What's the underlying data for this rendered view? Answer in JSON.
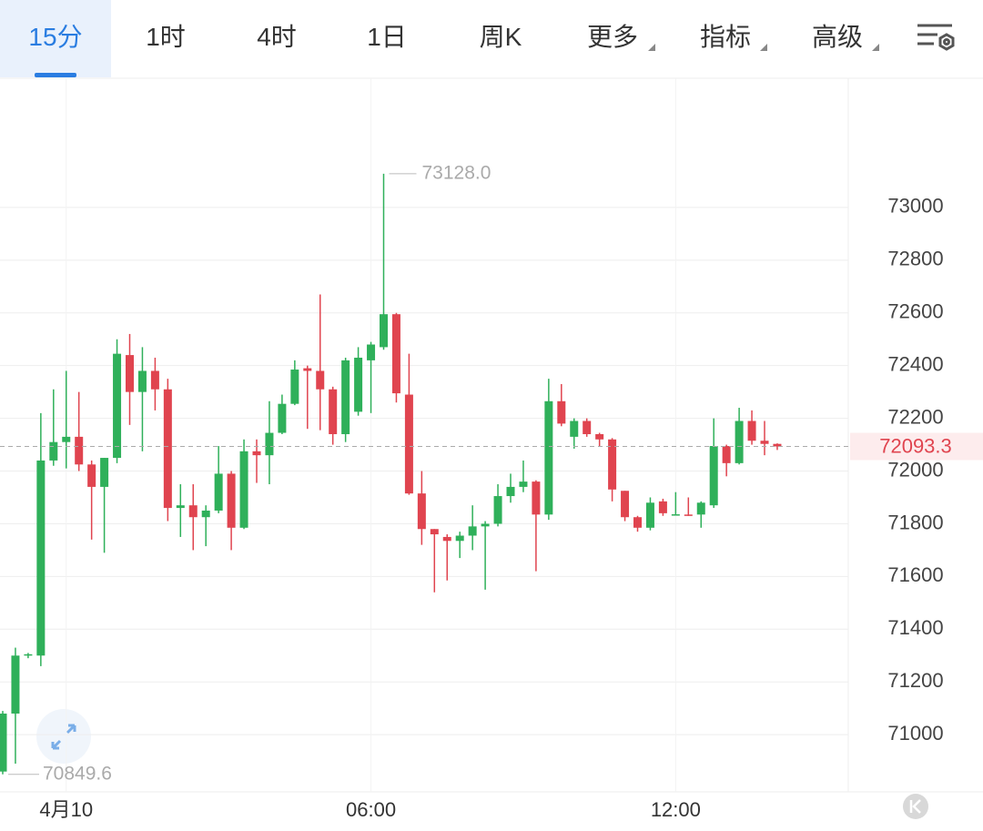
{
  "tabs": [
    "15分",
    "1时",
    "4时",
    "1日",
    "周K",
    "更多",
    "指标",
    "高级"
  ],
  "chart_data": {
    "type": "candlestick",
    "categories": [
      null,
      null,
      null,
      null,
      null,
      "4月10",
      null,
      null,
      null,
      null,
      null,
      null,
      null,
      null,
      null,
      null,
      null,
      null,
      null,
      null,
      null,
      null,
      null,
      null,
      null,
      null,
      null,
      null,
      null,
      "06:00",
      null,
      null,
      null,
      null,
      null,
      null,
      null,
      null,
      null,
      null,
      null,
      null,
      null,
      null,
      null,
      null,
      null,
      null,
      null,
      null,
      null,
      null,
      null,
      "12:00",
      null,
      null,
      null,
      null,
      null,
      null,
      null,
      null
    ],
    "open": [
      70860,
      71080,
      71300,
      71300,
      72040,
      72110,
      72130,
      72025,
      71940,
      72050,
      72440,
      72300,
      72380,
      72310,
      71860,
      71870,
      71825,
      71850,
      71990,
      71785,
      72075,
      72060,
      72145,
      72255,
      72390,
      72380,
      72310,
      72140,
      72225,
      72420,
      72470,
      72595,
      72290,
      71915,
      71780,
      71750,
      71735,
      71755,
      71790,
      71800,
      71905,
      71940,
      71960,
      71835,
      72265,
      72130,
      72190,
      72140,
      72120,
      71925,
      71825,
      71785,
      71885,
      71835,
      71835,
      71835,
      71870,
      72095,
      72030,
      72190,
      72115,
      72103
    ],
    "high": [
      71090,
      71330,
      71310,
      72220,
      72310,
      72380,
      72300,
      72040,
      72050,
      72500,
      72520,
      72470,
      72430,
      72350,
      71950,
      71950,
      71870,
      72095,
      72000,
      72120,
      72120,
      72265,
      72290,
      72420,
      72400,
      72670,
      72320,
      72430,
      72470,
      72490,
      73128,
      72600,
      72445,
      72000,
      71780,
      71760,
      71770,
      71870,
      71810,
      71950,
      71990,
      72040,
      71965,
      72350,
      72330,
      72200,
      72200,
      72145,
      72125,
      71925,
      71830,
      71900,
      71895,
      71920,
      71900,
      71885,
      72200,
      72100,
      72240,
      72230,
      72190,
      72105
    ],
    "low": [
      70849.6,
      70890,
      71290,
      71260,
      72020,
      72010,
      72000,
      71740,
      71690,
      72030,
      72175,
      72075,
      72230,
      71810,
      71750,
      71700,
      71715,
      71840,
      71700,
      71780,
      71955,
      71950,
      72140,
      72250,
      72160,
      72155,
      72100,
      72110,
      72210,
      72220,
      72460,
      72260,
      71910,
      71720,
      71540,
      71585,
      71670,
      71700,
      71550,
      71790,
      71880,
      71920,
      71620,
      71815,
      72170,
      72085,
      72130,
      72095,
      71885,
      71810,
      71770,
      71775,
      71830,
      71835,
      71830,
      71785,
      71860,
      71980,
      72025,
      72100,
      72060,
      72080
    ],
    "close": [
      71080,
      71300,
      71305,
      72040,
      72110,
      72130,
      72025,
      71940,
      72050,
      72445,
      72300,
      72380,
      72310,
      71860,
      71870,
      71825,
      71850,
      71990,
      71785,
      72075,
      72060,
      72145,
      72255,
      72385,
      72380,
      72310,
      72140,
      72420,
      72430,
      72480,
      72595,
      72295,
      71915,
      71780,
      71760,
      71735,
      71755,
      71790,
      71800,
      71905,
      71940,
      71960,
      71835,
      72265,
      72180,
      72190,
      72140,
      72120,
      71930,
      71825,
      71785,
      71880,
      71840,
      71836,
      71834,
      71880,
      72095,
      72030,
      72190,
      72115,
      72103,
      72093.3
    ],
    "up_color": "#2fb05a",
    "down_color": "#e0444f",
    "ylim": [
      70783,
      73490
    ],
    "yticks": [
      71000,
      71200,
      71400,
      71600,
      71800,
      72000,
      72200,
      72400,
      72600,
      72800,
      73000
    ],
    "grid": true,
    "high_mark": {
      "value": 73128.0,
      "label": "73128.0"
    },
    "low_mark": 70849.6,
    "last_price": 72093.3
  }
}
